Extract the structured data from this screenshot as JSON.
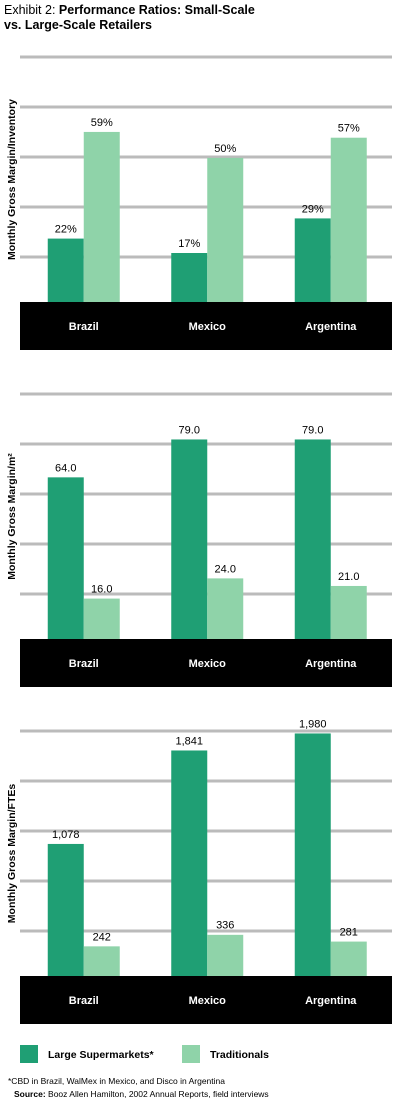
{
  "header": {
    "prefix": "Exhibit 2:",
    "title": "Performance Ratios: Small-Scale vs. Large-Scale Retailers"
  },
  "chart_data": [
    {
      "type": "bar",
      "y_label": "Monthly Gross Margin/Inventory",
      "categories": [
        "Brazil",
        "Mexico",
        "Argentina"
      ],
      "series": [
        {
          "name": "Large Supermarkets*",
          "color": "#1f9f74",
          "values": [
            22,
            17,
            29
          ],
          "value_labels": [
            "22%",
            "17%",
            "29%"
          ]
        },
        {
          "name": "Traditionals",
          "color": "#8fd3a9",
          "values": [
            59,
            50,
            57
          ],
          "value_labels": [
            "59%",
            "50%",
            "57%"
          ]
        }
      ],
      "ylim": [
        0,
        85
      ],
      "grid": true
    },
    {
      "type": "bar",
      "y_label": "Monthly Gross Margin/m²",
      "categories": [
        "Brazil",
        "Mexico",
        "Argentina"
      ],
      "series": [
        {
          "color": "#1f9f74",
          "values": [
            64,
            79,
            79
          ],
          "value_labels": [
            "64.0",
            "79.0",
            "79.0"
          ]
        },
        {
          "color": "#8fd3a9",
          "values": [
            16,
            24,
            21
          ],
          "value_labels": [
            "16.0",
            "24.0",
            "21.0"
          ]
        }
      ],
      "ylim": [
        0,
        97
      ],
      "grid": true
    },
    {
      "type": "bar",
      "y_label": "Monthly Gross Margin/FTEs",
      "categories": [
        "Brazil",
        "Mexico",
        "Argentina"
      ],
      "series": [
        {
          "color": "#1f9f74",
          "values": [
            1078,
            1841,
            1980
          ],
          "value_labels": [
            "1,078",
            "1,841",
            "1,980"
          ]
        },
        {
          "color": "#8fd3a9",
          "values": [
            242,
            336,
            281
          ],
          "value_labels": [
            "242",
            "336",
            "281"
          ]
        }
      ],
      "ylim": [
        0,
        2000
      ],
      "grid": true
    }
  ],
  "footnote": "*CBD in Brazil, WalMex in Mexico, and Disco in Argentina",
  "source": {
    "label": "Source:",
    "text": "Booz Allen Hamilton, 2002 Annual Reports, field interviews"
  }
}
